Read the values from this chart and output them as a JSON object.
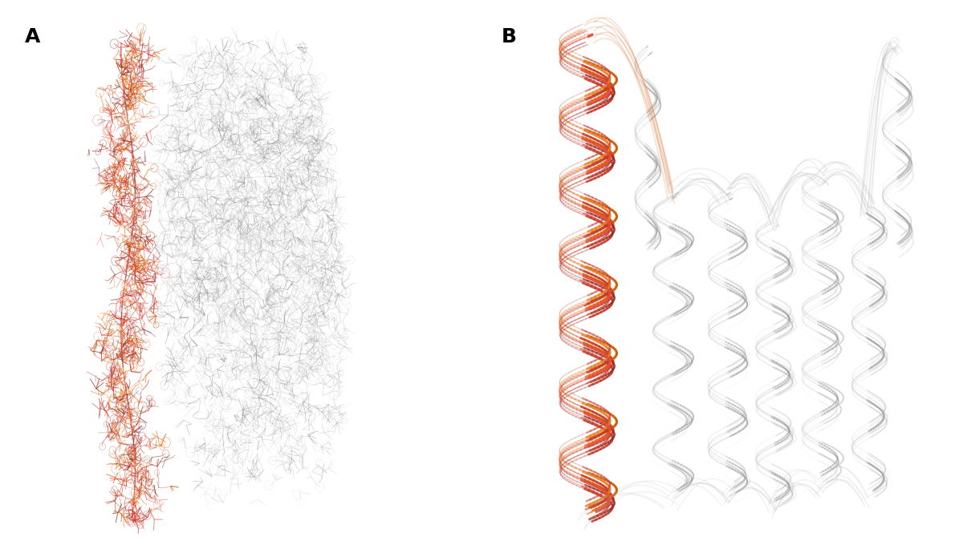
{
  "title": "",
  "panel_A_label": "A",
  "panel_B_label": "B",
  "label_fontsize": 18,
  "label_fontweight": "bold",
  "background_color": "#ffffff",
  "gray_color": "#b0b0b0",
  "gray_light": "#cccccc",
  "gray_dark": "#888888",
  "gray_very_light": "#e8e8e8",
  "red_colors": [
    "#c0392b",
    "#e74c3c",
    "#d35400",
    "#e67e22",
    "#c0392b",
    "#922b21",
    "#cb4335"
  ],
  "highlight_colors": [
    "#c0392b",
    "#d35400",
    "#e67e22",
    "#cb4335",
    "#e74c3c",
    "#a93226",
    "#d35400"
  ],
  "figsize": [
    11.95,
    6.85
  ],
  "dpi": 100
}
